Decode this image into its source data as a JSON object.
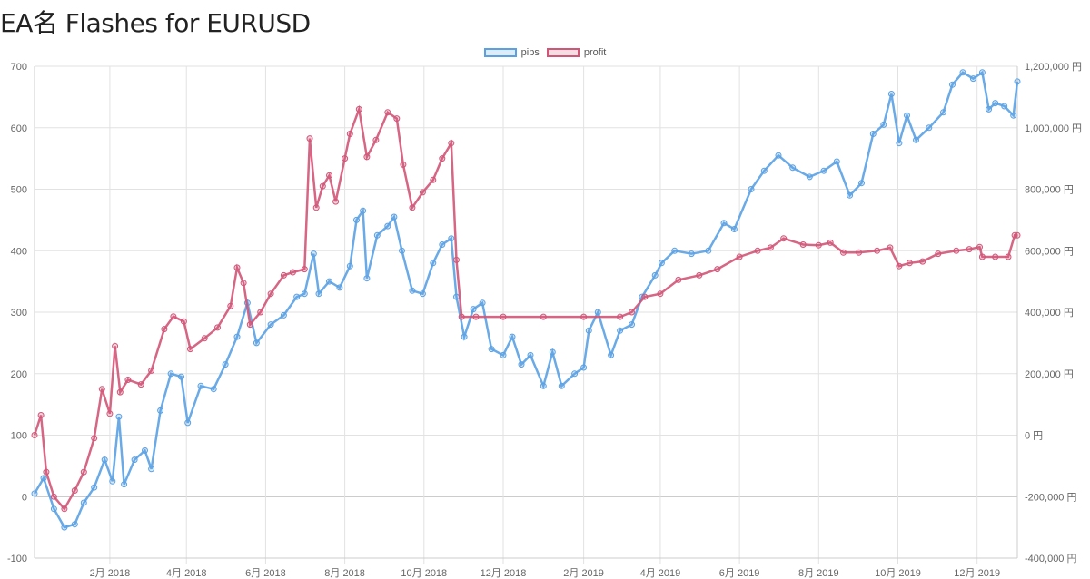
{
  "page": {
    "title": "EA名 Flashes for EURUSD"
  },
  "chart_data": {
    "type": "line",
    "title": "EA名 Flashes for EURUSD",
    "x_tick_labels": [
      "2月 2018",
      "4月 2018",
      "6月 2018",
      "8月 2018",
      "10月 2018",
      "12月 2018",
      "2月 2019",
      "4月 2019",
      "6月 2019",
      "8月 2019",
      "10月 2019",
      "12月 2019"
    ],
    "x_tick_dates": [
      "2018-02-01",
      "2018-04-01",
      "2018-06-01",
      "2018-08-01",
      "2018-10-01",
      "2018-12-01",
      "2019-02-01",
      "2019-04-01",
      "2019-06-01",
      "2019-08-01",
      "2019-10-01",
      "2019-12-01"
    ],
    "x_range": [
      "2017-12-05",
      "2020-01-01"
    ],
    "y_left": {
      "min": -100,
      "max": 700,
      "step": 100,
      "tick_labels": [
        "-100",
        "0",
        "100",
        "200",
        "300",
        "400",
        "500",
        "600",
        "700"
      ]
    },
    "y_right": {
      "min": -400000,
      "max": 1200000,
      "step": 200000,
      "unit": "円",
      "tick_labels": [
        "-400,000 円",
        "-200,000 円",
        "0 円",
        "200,000 円",
        "400,000 円",
        "600,000 円",
        "800,000 円",
        "1,000,000 円",
        "1,200,000 円"
      ]
    },
    "grid": true,
    "legend_position": "top",
    "series": [
      {
        "name": "pips",
        "axis": "left",
        "color": "#5aa1e3",
        "points": [
          [
            "2017-12-05",
            5
          ],
          [
            "2017-12-12",
            30
          ],
          [
            "2017-12-20",
            -20
          ],
          [
            "2017-12-28",
            -50
          ],
          [
            "2018-01-05",
            -45
          ],
          [
            "2018-01-12",
            -10
          ],
          [
            "2018-01-20",
            15
          ],
          [
            "2018-01-28",
            60
          ],
          [
            "2018-02-03",
            25
          ],
          [
            "2018-02-08",
            130
          ],
          [
            "2018-02-12",
            20
          ],
          [
            "2018-02-20",
            60
          ],
          [
            "2018-02-28",
            75
          ],
          [
            "2018-03-05",
            45
          ],
          [
            "2018-03-12",
            140
          ],
          [
            "2018-03-20",
            200
          ],
          [
            "2018-03-28",
            195
          ],
          [
            "2018-04-02",
            120
          ],
          [
            "2018-04-12",
            180
          ],
          [
            "2018-04-22",
            175
          ],
          [
            "2018-05-01",
            215
          ],
          [
            "2018-05-10",
            260
          ],
          [
            "2018-05-18",
            315
          ],
          [
            "2018-05-25",
            250
          ],
          [
            "2018-06-05",
            280
          ],
          [
            "2018-06-15",
            295
          ],
          [
            "2018-06-25",
            325
          ],
          [
            "2018-07-01",
            330
          ],
          [
            "2018-07-08",
            395
          ],
          [
            "2018-07-12",
            330
          ],
          [
            "2018-07-20",
            350
          ],
          [
            "2018-07-28",
            340
          ],
          [
            "2018-08-05",
            375
          ],
          [
            "2018-08-10",
            450
          ],
          [
            "2018-08-15",
            465
          ],
          [
            "2018-08-18",
            355
          ],
          [
            "2018-08-26",
            425
          ],
          [
            "2018-09-03",
            440
          ],
          [
            "2018-09-08",
            455
          ],
          [
            "2018-09-14",
            400
          ],
          [
            "2018-09-22",
            335
          ],
          [
            "2018-09-30",
            330
          ],
          [
            "2018-10-08",
            380
          ],
          [
            "2018-10-15",
            410
          ],
          [
            "2018-10-22",
            420
          ],
          [
            "2018-10-26",
            325
          ],
          [
            "2018-11-01",
            260
          ],
          [
            "2018-11-08",
            305
          ],
          [
            "2018-11-15",
            315
          ],
          [
            "2018-11-22",
            240
          ],
          [
            "2018-12-01",
            230
          ],
          [
            "2018-12-08",
            260
          ],
          [
            "2018-12-15",
            215
          ],
          [
            "2018-12-22",
            230
          ],
          [
            "2019-01-01",
            180
          ],
          [
            "2019-01-08",
            235
          ],
          [
            "2019-01-15",
            180
          ],
          [
            "2019-01-25",
            200
          ],
          [
            "2019-02-01",
            210
          ],
          [
            "2019-02-05",
            270
          ],
          [
            "2019-02-12",
            300
          ],
          [
            "2019-02-22",
            230
          ],
          [
            "2019-03-01",
            270
          ],
          [
            "2019-03-10",
            280
          ],
          [
            "2019-03-18",
            325
          ],
          [
            "2019-03-28",
            360
          ],
          [
            "2019-04-02",
            380
          ],
          [
            "2019-04-12",
            400
          ],
          [
            "2019-04-25",
            395
          ],
          [
            "2019-05-08",
            400
          ],
          [
            "2019-05-20",
            445
          ],
          [
            "2019-05-28",
            435
          ],
          [
            "2019-06-10",
            500
          ],
          [
            "2019-06-20",
            530
          ],
          [
            "2019-07-01",
            555
          ],
          [
            "2019-07-12",
            535
          ],
          [
            "2019-07-25",
            520
          ],
          [
            "2019-08-05",
            530
          ],
          [
            "2019-08-15",
            545
          ],
          [
            "2019-08-25",
            490
          ],
          [
            "2019-09-03",
            510
          ],
          [
            "2019-09-12",
            590
          ],
          [
            "2019-09-20",
            605
          ],
          [
            "2019-09-26",
            655
          ],
          [
            "2019-10-02",
            575
          ],
          [
            "2019-10-08",
            620
          ],
          [
            "2019-10-15",
            580
          ],
          [
            "2019-10-25",
            600
          ],
          [
            "2019-11-05",
            625
          ],
          [
            "2019-11-12",
            670
          ],
          [
            "2019-11-20",
            690
          ],
          [
            "2019-11-28",
            680
          ],
          [
            "2019-12-05",
            690
          ],
          [
            "2019-12-10",
            630
          ],
          [
            "2019-12-15",
            640
          ],
          [
            "2019-12-22",
            635
          ],
          [
            "2019-12-29",
            620
          ],
          [
            "2020-01-01",
            675
          ]
        ]
      },
      {
        "name": "profit",
        "axis": "right",
        "color": "#d15577",
        "points": [
          [
            "2017-12-05",
            0
          ],
          [
            "2017-12-10",
            65
          ],
          [
            "2017-12-14",
            -120
          ],
          [
            "2017-12-20",
            -200
          ],
          [
            "2017-12-28",
            -240
          ],
          [
            "2018-01-05",
            -180
          ],
          [
            "2018-01-12",
            -120
          ],
          [
            "2018-01-20",
            -10
          ],
          [
            "2018-01-26",
            150
          ],
          [
            "2018-02-01",
            70
          ],
          [
            "2018-02-05",
            290
          ],
          [
            "2018-02-09",
            140
          ],
          [
            "2018-02-15",
            180
          ],
          [
            "2018-02-25",
            165
          ],
          [
            "2018-03-05",
            210
          ],
          [
            "2018-03-15",
            345
          ],
          [
            "2018-03-22",
            386
          ],
          [
            "2018-03-30",
            370
          ],
          [
            "2018-04-04",
            280
          ],
          [
            "2018-04-15",
            315
          ],
          [
            "2018-04-25",
            350
          ],
          [
            "2018-05-05",
            420
          ],
          [
            "2018-05-10",
            545
          ],
          [
            "2018-05-15",
            495
          ],
          [
            "2018-05-20",
            360
          ],
          [
            "2018-05-28",
            400
          ],
          [
            "2018-06-05",
            460
          ],
          [
            "2018-06-15",
            520
          ],
          [
            "2018-06-22",
            530
          ],
          [
            "2018-07-01",
            540
          ],
          [
            "2018-07-05",
            965
          ],
          [
            "2018-07-10",
            740
          ],
          [
            "2018-07-15",
            810
          ],
          [
            "2018-07-20",
            845
          ],
          [
            "2018-07-25",
            760
          ],
          [
            "2018-08-01",
            900
          ],
          [
            "2018-08-05",
            980
          ],
          [
            "2018-08-12",
            1060
          ],
          [
            "2018-08-18",
            905
          ],
          [
            "2018-08-25",
            960
          ],
          [
            "2018-09-03",
            1050
          ],
          [
            "2018-09-10",
            1030
          ],
          [
            "2018-09-15",
            880
          ],
          [
            "2018-09-22",
            740
          ],
          [
            "2018-09-30",
            790
          ],
          [
            "2018-10-08",
            830
          ],
          [
            "2018-10-15",
            900
          ],
          [
            "2018-10-22",
            950
          ],
          [
            "2018-10-26",
            570
          ],
          [
            "2018-10-30",
            385
          ],
          [
            "2018-11-10",
            385
          ],
          [
            "2018-12-01",
            385
          ],
          [
            "2019-01-01",
            385
          ],
          [
            "2019-02-01",
            385
          ],
          [
            "2019-03-01",
            385
          ],
          [
            "2019-03-10",
            400
          ],
          [
            "2019-03-20",
            450
          ],
          [
            "2019-04-01",
            460
          ],
          [
            "2019-04-15",
            505
          ],
          [
            "2019-05-01",
            520
          ],
          [
            "2019-05-15",
            540
          ],
          [
            "2019-06-01",
            580
          ],
          [
            "2019-06-15",
            600
          ],
          [
            "2019-06-25",
            610
          ],
          [
            "2019-07-05",
            640
          ],
          [
            "2019-07-20",
            620
          ],
          [
            "2019-08-01",
            618
          ],
          [
            "2019-08-10",
            626
          ],
          [
            "2019-08-20",
            594
          ],
          [
            "2019-09-01",
            594
          ],
          [
            "2019-09-15",
            600
          ],
          [
            "2019-09-25",
            610
          ],
          [
            "2019-10-02",
            550
          ],
          [
            "2019-10-10",
            560
          ],
          [
            "2019-10-20",
            565
          ],
          [
            "2019-11-01",
            590
          ],
          [
            "2019-11-15",
            600
          ],
          [
            "2019-11-25",
            605
          ],
          [
            "2019-12-03",
            612
          ],
          [
            "2019-12-05",
            580
          ],
          [
            "2019-12-15",
            580
          ],
          [
            "2019-12-25",
            580
          ],
          [
            "2019-12-30",
            650
          ],
          [
            "2020-01-01",
            650
          ]
        ]
      }
    ]
  }
}
